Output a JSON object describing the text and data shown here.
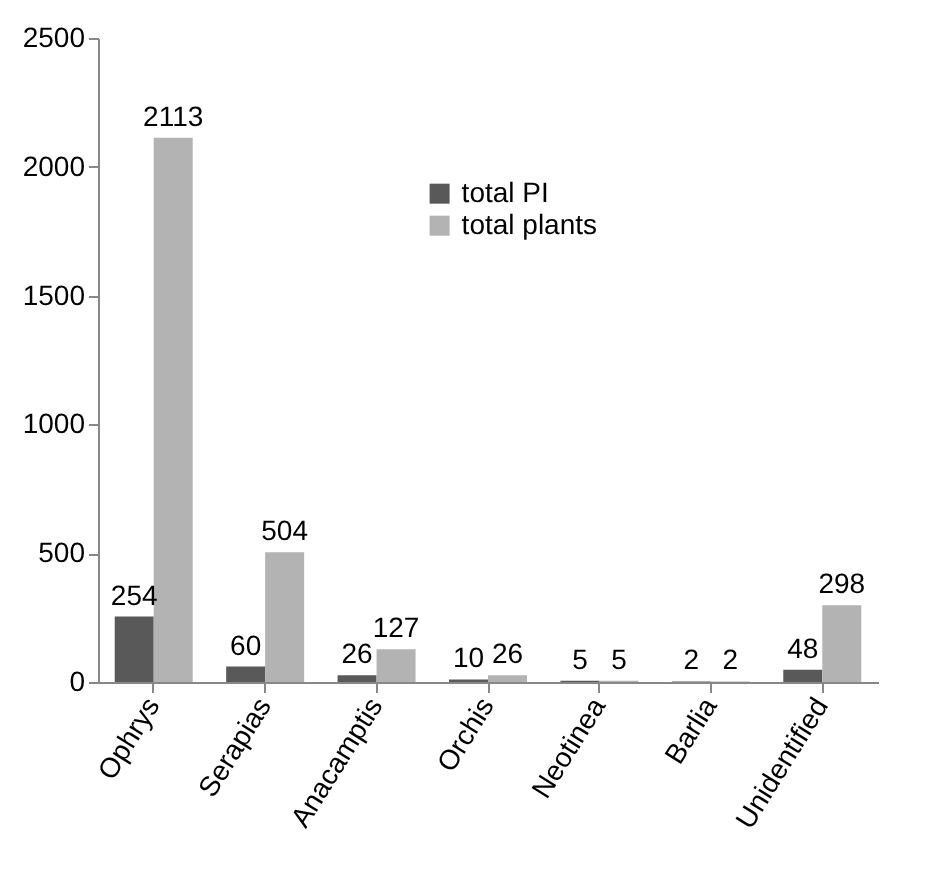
{
  "chart_data": {
    "type": "bar",
    "categories": [
      "Ophrys",
      "Serapias",
      "Anacamptis",
      "Orchis",
      "Neotinea",
      "Barlia",
      "Unidentified"
    ],
    "series": [
      {
        "name": "total PI",
        "color": "#595959",
        "values": [
          254,
          60,
          26,
          10,
          5,
          2,
          48
        ]
      },
      {
        "name": "total plants",
        "color": "#b3b3b3",
        "values": [
          2113,
          504,
          127,
          26,
          5,
          2,
          298
        ]
      }
    ],
    "ylim": [
      0,
      2500
    ],
    "yticks": [
      0,
      500,
      1000,
      1500,
      2000,
      2500
    ],
    "grid": false,
    "legend": "top",
    "data_labels": true
  }
}
